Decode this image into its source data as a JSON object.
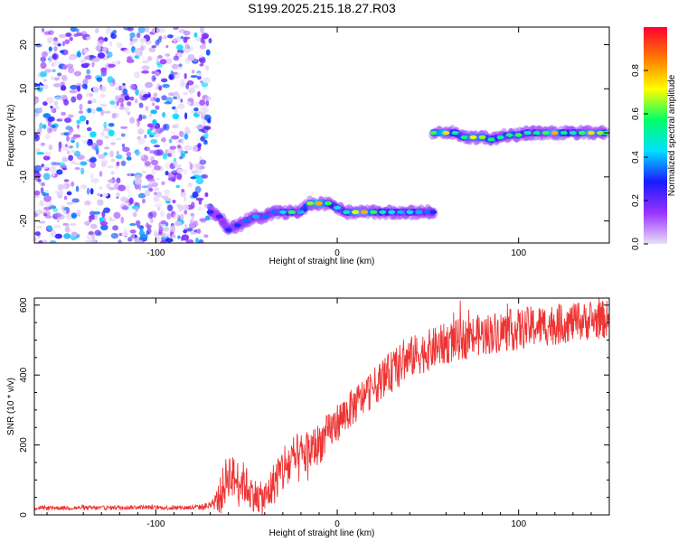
{
  "title": "S199.2025.215.18.27.R03",
  "chart_data": [
    {
      "type": "heatmap",
      "xlabel": "Height of straight line (km)",
      "ylabel": "Frequency (Hz)",
      "xlim": [
        -167,
        150
      ],
      "ylim": [
        -25,
        24
      ],
      "x_ticks": [
        -100,
        0,
        100
      ],
      "y_ticks": [
        -20,
        -10,
        0,
        10,
        20
      ],
      "colorbar": {
        "label": "Normalized spectral amplitude",
        "range": [
          0,
          1
        ],
        "ticks": [
          0.0,
          0.2,
          0.4,
          0.6,
          0.8
        ],
        "colormap": [
          "#e8dff7",
          "#9933ff",
          "#1a1aff",
          "#00e0ff",
          "#00ff66",
          "#ffff00",
          "#ff7a00",
          "#ff0033"
        ]
      },
      "noise_region_x": [
        -167,
        -70
      ],
      "ridge": {
        "segments": [
          {
            "x": [
              -70,
              -65,
              -60,
              -55,
              -50,
              -45,
              -40,
              -35,
              -30,
              -25,
              -20,
              -15,
              -10,
              -5,
              0,
              5,
              10,
              15,
              20,
              25,
              30,
              35,
              40,
              45,
              50,
              53
            ],
            "freq": [
              -18,
              -19,
              -22,
              -21,
              -20,
              -19,
              -19,
              -18,
              -18,
              -18,
              -18,
              -16,
              -16,
              -16,
              -17,
              -18,
              -18,
              -18,
              -18,
              -18,
              -18,
              -18,
              -18,
              -18,
              -18,
              -18
            ],
            "amplitude": [
              0.3,
              0.25,
              0.3,
              0.3,
              0.35,
              0.4,
              0.35,
              0.35,
              0.45,
              0.6,
              0.4,
              0.65,
              0.8,
              0.6,
              0.45,
              0.5,
              0.7,
              0.8,
              0.6,
              0.5,
              0.45,
              0.4,
              0.45,
              0.4,
              0.35,
              0.3
            ]
          },
          {
            "x": [
              53,
              60,
              65,
              70,
              75,
              80,
              85,
              90,
              95,
              100,
              105,
              110,
              115,
              120,
              125,
              130,
              135,
              140,
              145,
              148
            ],
            "freq": [
              0,
              0,
              0,
              -1,
              -1,
              -1,
              -1.5,
              -1,
              -0.5,
              -0.5,
              0,
              0,
              0,
              0,
              0,
              0,
              0,
              0,
              0,
              0
            ],
            "amplitude": [
              0.6,
              0.75,
              0.5,
              0.55,
              0.7,
              0.65,
              0.55,
              0.5,
              0.55,
              0.6,
              0.5,
              0.55,
              0.6,
              0.8,
              0.55,
              0.5,
              0.6,
              0.75,
              0.65,
              0.6
            ]
          }
        ]
      }
    },
    {
      "type": "line",
      "xlabel": "Height of straight line (km)",
      "ylabel": "SNR (10 * v/v)",
      "xlim": [
        -167,
        150
      ],
      "ylim": [
        0,
        620
      ],
      "x_ticks": [
        -100,
        0,
        100
      ],
      "y_ticks": [
        0,
        200,
        400,
        600
      ],
      "line_color": "#ee3333",
      "series": [
        {
          "x": [
            -167,
            -150,
            -130,
            -110,
            -90,
            -75,
            -68,
            -64,
            -60,
            -56,
            -52,
            -48,
            -44,
            -40,
            -36,
            -32,
            -28,
            -24,
            -20,
            -16,
            -12,
            -8,
            -4,
            0,
            5,
            10,
            15,
            20,
            25,
            30,
            35,
            40,
            50,
            60,
            70,
            80,
            90,
            100,
            110,
            120,
            130,
            140,
            150
          ],
          "values": [
            20,
            20,
            20,
            22,
            20,
            22,
            30,
            60,
            120,
            100,
            95,
            70,
            50,
            45,
            80,
            120,
            140,
            150,
            165,
            180,
            195,
            215,
            240,
            265,
            290,
            315,
            340,
            365,
            390,
            410,
            430,
            450,
            470,
            490,
            505,
            515,
            525,
            530,
            540,
            545,
            550,
            555,
            560
          ],
          "spread": [
            6,
            6,
            6,
            6,
            6,
            8,
            15,
            60,
            70,
            60,
            60,
            55,
            45,
            50,
            60,
            70,
            80,
            80,
            70,
            65,
            60,
            60,
            55,
            55,
            55,
            55,
            55,
            55,
            55,
            60,
            60,
            60,
            60,
            60,
            60,
            60,
            60,
            60,
            60,
            60,
            55,
            55,
            55
          ]
        }
      ]
    }
  ]
}
